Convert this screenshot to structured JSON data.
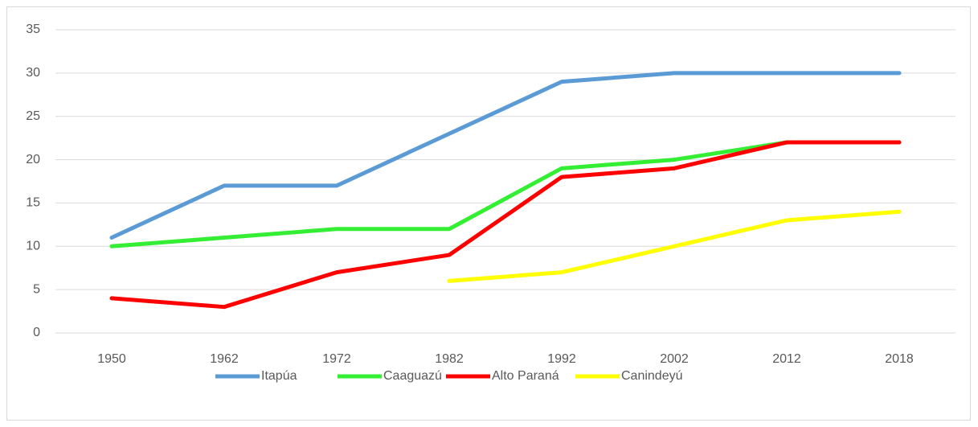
{
  "chart_data": {
    "type": "line",
    "categories": [
      "1950",
      "1962",
      "1972",
      "1982",
      "1992",
      "2002",
      "2012",
      "2018"
    ],
    "series": [
      {
        "name": "Itapúa",
        "color": "#5b9bd5",
        "values": [
          11,
          17,
          17,
          23,
          29,
          30,
          30,
          30
        ]
      },
      {
        "name": "Caaguazú",
        "color": "#33ee33",
        "values": [
          10,
          11,
          12,
          12,
          19,
          20,
          22,
          22
        ]
      },
      {
        "name": "Alto Paraná",
        "color": "#ff0000",
        "values": [
          4,
          3,
          7,
          9,
          18,
          19,
          22,
          22
        ]
      },
      {
        "name": "Canindeyú",
        "color": "#ffff00",
        "values": [
          null,
          null,
          null,
          6,
          7,
          10,
          13,
          14
        ]
      }
    ],
    "ylim": [
      0,
      35
    ],
    "yticks": [
      0,
      5,
      10,
      15,
      20,
      25,
      30,
      35
    ],
    "grid": true,
    "legend": "bottom"
  }
}
